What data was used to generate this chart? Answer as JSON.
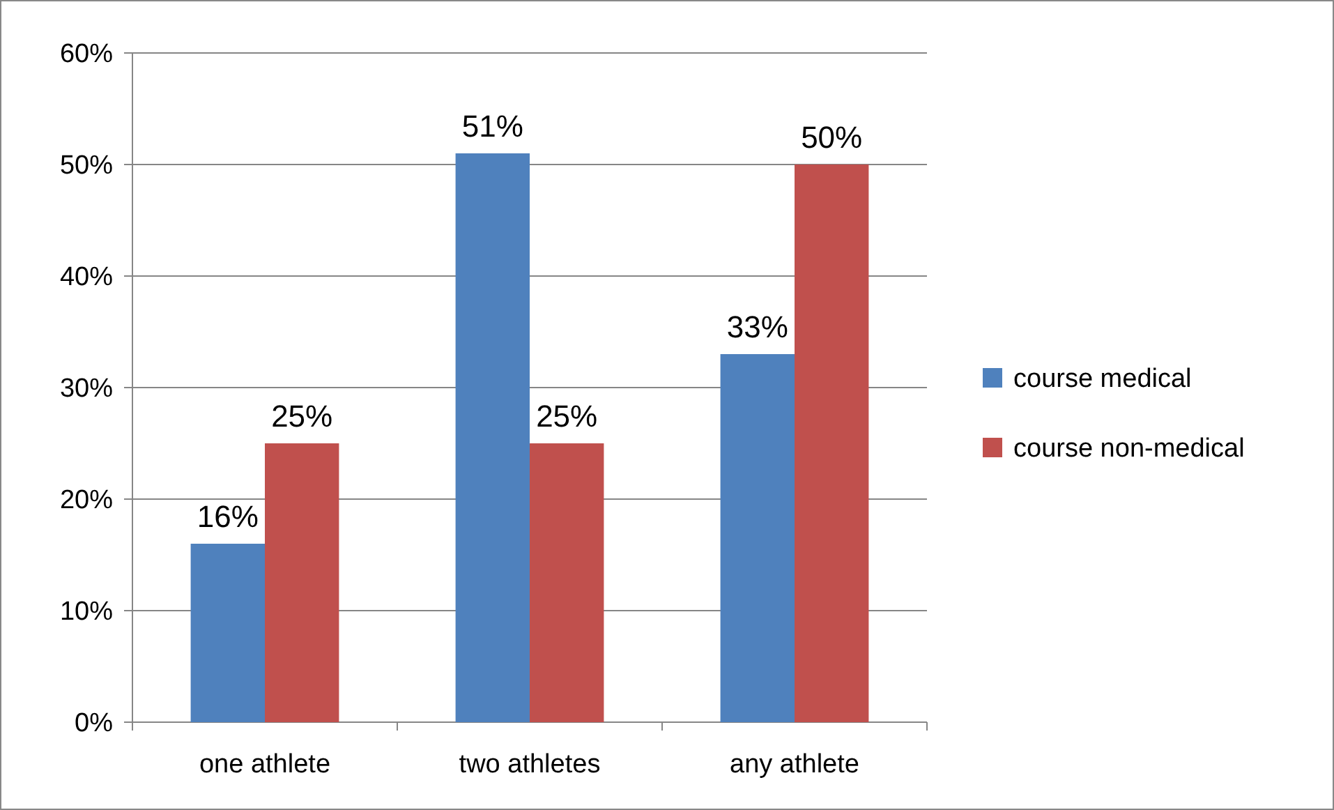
{
  "chart_data": {
    "type": "bar",
    "categories": [
      "one athlete",
      "two athletes",
      "any athlete"
    ],
    "series": [
      {
        "name": "course medical",
        "color": "#4f81bd",
        "values": [
          16,
          51,
          33
        ],
        "value_labels": [
          "16%",
          "51%",
          "33%"
        ]
      },
      {
        "name": "course non-medical",
        "color": "#c0504d",
        "values": [
          25,
          25,
          50
        ],
        "value_labels": [
          "25%",
          "25%",
          "50%"
        ]
      }
    ],
    "ylim": [
      0,
      60
    ],
    "yticks": [
      {
        "value": 0,
        "label": "0%"
      },
      {
        "value": 10,
        "label": "10%"
      },
      {
        "value": 20,
        "label": "20%"
      },
      {
        "value": 30,
        "label": "30%"
      },
      {
        "value": 40,
        "label": "40%"
      },
      {
        "value": 50,
        "label": "50%"
      },
      {
        "value": 60,
        "label": "60%"
      }
    ],
    "grid": "y",
    "legend": "right"
  }
}
